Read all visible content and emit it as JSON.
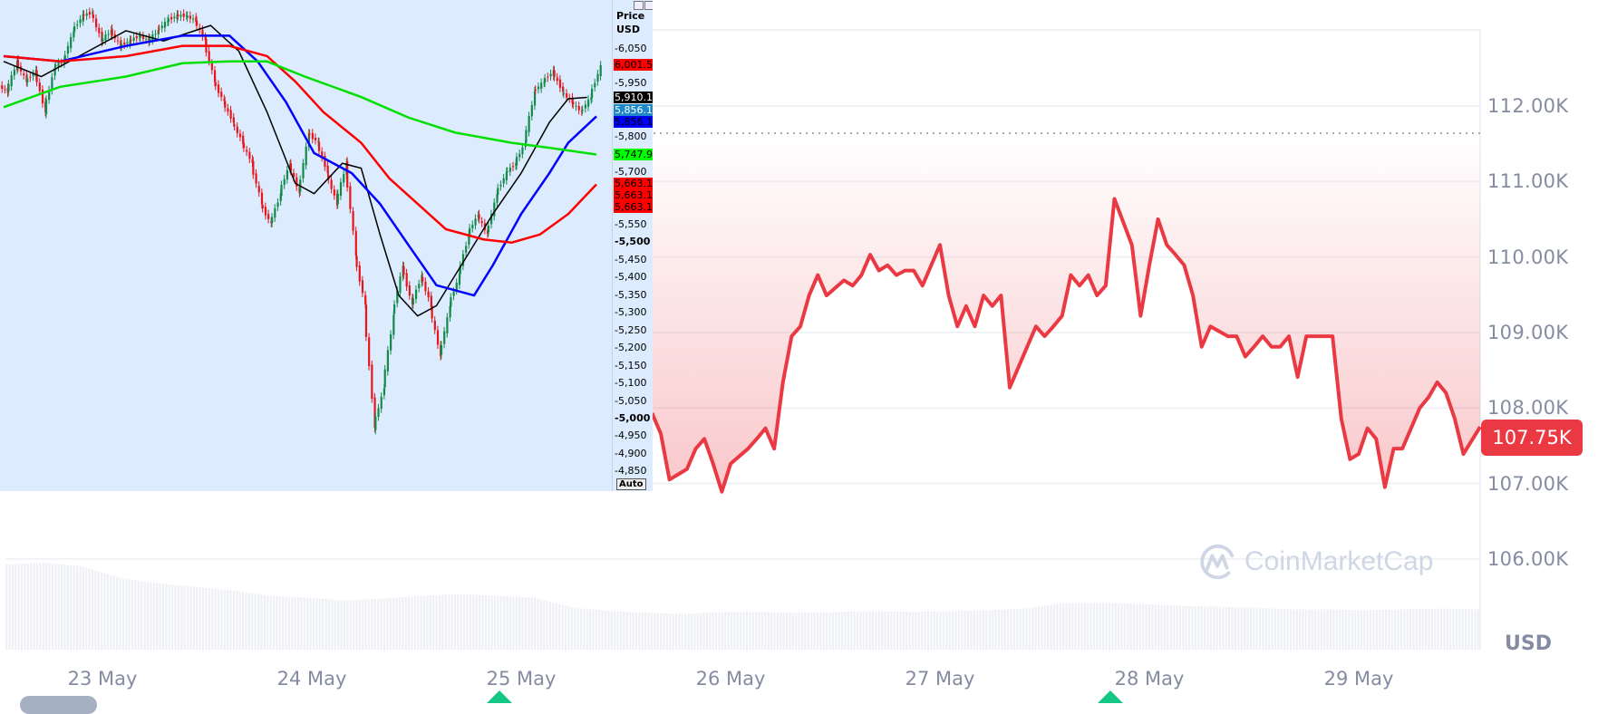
{
  "currency_label": "USD",
  "current_price_label": "107.75K",
  "watermark": "CoinMarketCap",
  "colors": {
    "line": "#ea3943",
    "badge": "#ea3943",
    "axis_text": "#858ca2",
    "marker": "#16c784",
    "overlay_bg": "#dcebfd"
  },
  "chart_data": [
    {
      "type": "area",
      "y_ticks": [
        "112.00K",
        "111.00K",
        "110.00K",
        "109.00K",
        "108.00K",
        "107.00K",
        "106.00K"
      ],
      "y_tick_values": [
        112000,
        111000,
        110000,
        109000,
        108000,
        107000,
        106000
      ],
      "x_ticks": [
        "23 May",
        "24 May",
        "25 May",
        "26 May",
        "27 May",
        "28 May",
        "29 May"
      ],
      "baseline": 111640,
      "grid": true,
      "points": [
        [
          "25 May 15:00",
          107930
        ],
        [
          "25 May 16:00",
          107660
        ],
        [
          "25 May 17:00",
          107050
        ],
        [
          "25 May 18:00",
          107120
        ],
        [
          "25 May 19:00",
          107190
        ],
        [
          "25 May 20:00",
          107460
        ],
        [
          "25 May 21:00",
          107590
        ],
        [
          "25 May 22:00",
          107260
        ],
        [
          "25 May 23:00",
          106890
        ],
        [
          "26 May 00:00",
          107260
        ],
        [
          "26 May 02:00",
          107460
        ],
        [
          "26 May 03:00",
          107590
        ],
        [
          "26 May 04:00",
          107730
        ],
        [
          "26 May 05:00",
          107460
        ],
        [
          "26 May 06:00",
          108340
        ],
        [
          "26 May 07:00",
          108950
        ],
        [
          "26 May 08:00",
          109080
        ],
        [
          "26 May 09:00",
          109490
        ],
        [
          "26 May 10:00",
          109760
        ],
        [
          "26 May 11:00",
          109490
        ],
        [
          "26 May 13:00",
          109690
        ],
        [
          "26 May 14:00",
          109620
        ],
        [
          "26 May 15:00",
          109760
        ],
        [
          "26 May 16:00",
          110030
        ],
        [
          "26 May 17:00",
          109820
        ],
        [
          "26 May 18:00",
          109890
        ],
        [
          "26 May 19:00",
          109760
        ],
        [
          "26 May 20:00",
          109820
        ],
        [
          "26 May 21:00",
          109820
        ],
        [
          "26 May 22:00",
          109620
        ],
        [
          "27 May 00:00",
          110160
        ],
        [
          "27 May 01:00",
          109490
        ],
        [
          "27 May 02:00",
          109080
        ],
        [
          "27 May 03:00",
          109350
        ],
        [
          "27 May 04:00",
          109080
        ],
        [
          "27 May 05:00",
          109490
        ],
        [
          "27 May 06:00",
          109350
        ],
        [
          "27 May 07:00",
          109490
        ],
        [
          "27 May 08:00",
          108270
        ],
        [
          "27 May 09:00",
          108540
        ],
        [
          "27 May 11:00",
          109080
        ],
        [
          "27 May 12:00",
          108950
        ],
        [
          "27 May 13:00",
          109080
        ],
        [
          "27 May 14:00",
          109220
        ],
        [
          "27 May 15:00",
          109760
        ],
        [
          "27 May 16:00",
          109620
        ],
        [
          "27 May 17:00",
          109760
        ],
        [
          "27 May 18:00",
          109490
        ],
        [
          "27 May 19:00",
          109620
        ],
        [
          "27 May 20:00",
          110770
        ],
        [
          "27 May 22:00",
          110160
        ],
        [
          "27 May 23:00",
          109220
        ],
        [
          "28 May 00:00",
          109890
        ],
        [
          "28 May 01:00",
          110500
        ],
        [
          "28 May 02:00",
          110160
        ],
        [
          "28 May 03:00",
          110030
        ],
        [
          "28 May 04:00",
          109890
        ],
        [
          "28 May 05:00",
          109490
        ],
        [
          "28 May 06:00",
          108810
        ],
        [
          "28 May 07:00",
          109080
        ],
        [
          "28 May 09:00",
          108950
        ],
        [
          "28 May 10:00",
          108950
        ],
        [
          "28 May 11:00",
          108680
        ],
        [
          "28 May 12:00",
          108810
        ],
        [
          "28 May 13:00",
          108950
        ],
        [
          "28 May 14:00",
          108810
        ],
        [
          "28 May 15:00",
          108810
        ],
        [
          "28 May 16:00",
          108950
        ],
        [
          "28 May 17:00",
          108410
        ],
        [
          "28 May 18:00",
          108950
        ],
        [
          "28 May 20:00",
          108950
        ],
        [
          "28 May 21:00",
          108950
        ],
        [
          "28 May 22:00",
          107860
        ],
        [
          "28 May 23:00",
          107320
        ],
        [
          "29 May 00:00",
          107390
        ],
        [
          "29 May 01:00",
          107730
        ],
        [
          "29 May 02:00",
          107590
        ],
        [
          "29 May 03:00",
          106950
        ],
        [
          "29 May 04:00",
          107460
        ],
        [
          "29 May 05:00",
          107460
        ],
        [
          "29 May 07:00",
          108000
        ],
        [
          "29 May 08:00",
          108140
        ],
        [
          "29 May 09:00",
          108340
        ],
        [
          "29 May 10:00",
          108200
        ],
        [
          "29 May 11:00",
          107860
        ],
        [
          "29 May 12:00",
          107390
        ],
        [
          "29 May 13:00",
          107750
        ]
      ],
      "volume_relative": [
        0.95,
        0.97,
        0.93,
        0.8,
        0.74,
        0.7,
        0.66,
        0.6,
        0.58,
        0.55,
        0.57,
        0.6,
        0.62,
        0.6,
        0.58,
        0.47,
        0.43,
        0.41,
        0.4,
        0.42,
        0.42,
        0.41,
        0.42,
        0.43,
        0.42,
        0.43,
        0.44,
        0.46,
        0.52,
        0.52,
        0.51,
        0.49,
        0.48,
        0.47,
        0.45,
        0.45,
        0.44,
        0.45,
        0.46,
        0.45
      ]
    },
    {
      "type": "candlestick",
      "title": "Price USD",
      "axis_unit": "Price\nUSD",
      "auto_label": "Auto",
      "y_ticks": [
        {
          "label": "6,050",
          "value": 6050
        },
        {
          "label": "5,950",
          "value": 5950
        },
        {
          "label": "5,800",
          "value": 5800
        },
        {
          "label": "5,700",
          "value": 5700
        },
        {
          "label": "5,550",
          "value": 5550
        },
        {
          "label": "5,500",
          "value": 5500,
          "bold": true
        },
        {
          "label": "5,450",
          "value": 5450
        },
        {
          "label": "5,400",
          "value": 5400
        },
        {
          "label": "5,350",
          "value": 5350
        },
        {
          "label": "5,300",
          "value": 5300
        },
        {
          "label": "5,250",
          "value": 5250
        },
        {
          "label": "5,200",
          "value": 5200
        },
        {
          "label": "5,150",
          "value": 5150
        },
        {
          "label": "5,100",
          "value": 5100
        },
        {
          "label": "5,050",
          "value": 5050
        },
        {
          "label": "5,000",
          "value": 5000,
          "bold": true
        },
        {
          "label": "4,950",
          "value": 4950
        },
        {
          "label": "4,900",
          "value": 4900
        },
        {
          "label": "4,850",
          "value": 4850
        }
      ],
      "price_labels": [
        {
          "label": "6,001.50",
          "value": 6001.5,
          "bg": "#ff0000",
          "fg": "#000000"
        },
        {
          "label": "5,910.12",
          "value": 5910.12,
          "bg": "#000000",
          "fg": "#ffffff"
        },
        {
          "label": "5,856.17",
          "value": 5856.17,
          "bg": "#1e88c8",
          "fg": "#ffffff",
          "offset": -5
        },
        {
          "label": "5,856.17",
          "value": 5856.17,
          "bg": "#0000ff",
          "fg": "#000000",
          "offset": 6
        },
        {
          "label": "5,747.93",
          "value": 5747.93,
          "bg": "#00ff00",
          "fg": "#000000"
        },
        {
          "label": "5,663.18",
          "value": 5663.18,
          "bg": "#ff0000",
          "fg": "#000000",
          "offset": -12
        },
        {
          "label": "5,663.18",
          "value": 5663.18,
          "bg": "#ff0000",
          "fg": "#000000",
          "offset": 0
        },
        {
          "label": "5,663.18",
          "value": 5663.18,
          "bg": "#ff0000",
          "fg": "#000000",
          "offset": 12
        }
      ],
      "closes": [
        5926,
        6012,
        5955,
        5984,
        5868,
        5998,
        6012,
        6099,
        6142,
        6151,
        6070,
        6099,
        6056,
        6070,
        6085,
        6070,
        6099,
        6128,
        6142,
        6142,
        6128,
        6070,
        5955,
        5897,
        5839,
        5781,
        5723,
        5608,
        5550,
        5637,
        5723,
        5637,
        5810,
        5781,
        5695,
        5608,
        5723,
        5463,
        5319,
        4972,
        5088,
        5290,
        5434,
        5319,
        5406,
        5319,
        5174,
        5319,
        5406,
        5521,
        5579,
        5521,
        5637,
        5695,
        5723,
        5781,
        5926,
        5955,
        5984,
        5926,
        5897,
        5868,
        5911,
        5998
      ],
      "moving_averages": [
        {
          "color": "#000000",
          "points": [
            [
              0,
              6012
            ],
            [
              4,
              5969
            ],
            [
              9,
              6041
            ],
            [
              13,
              6099
            ],
            [
              17,
              6070
            ],
            [
              22,
              6114
            ],
            [
              25,
              6041
            ],
            [
              28,
              5868
            ],
            [
              31,
              5666
            ],
            [
              33,
              5637
            ],
            [
              36,
              5723
            ],
            [
              38,
              5709
            ],
            [
              40,
              5521
            ],
            [
              42,
              5348
            ],
            [
              44,
              5290
            ],
            [
              46,
              5319
            ],
            [
              48,
              5406
            ],
            [
              52,
              5579
            ],
            [
              55,
              5695
            ],
            [
              58,
              5839
            ],
            [
              60,
              5906
            ],
            [
              62,
              5910
            ]
          ]
        },
        {
          "color": "#0000ff",
          "points": [
            [
              0,
              6027
            ],
            [
              6,
              6012
            ],
            [
              13,
              6056
            ],
            [
              19,
              6085
            ],
            [
              24,
              6085
            ],
            [
              27,
              6012
            ],
            [
              30,
              5897
            ],
            [
              33,
              5752
            ],
            [
              37,
              5695
            ],
            [
              40,
              5608
            ],
            [
              43,
              5492
            ],
            [
              46,
              5377
            ],
            [
              50,
              5348
            ],
            [
              52,
              5434
            ],
            [
              55,
              5579
            ],
            [
              58,
              5695
            ],
            [
              60,
              5781
            ],
            [
              63,
              5856
            ]
          ]
        },
        {
          "color": "#ff0000",
          "points": [
            [
              0,
              6027
            ],
            [
              6,
              6012
            ],
            [
              13,
              6027
            ],
            [
              19,
              6056
            ],
            [
              24,
              6056
            ],
            [
              28,
              6027
            ],
            [
              31,
              5955
            ],
            [
              34,
              5868
            ],
            [
              38,
              5781
            ],
            [
              41,
              5680
            ],
            [
              44,
              5608
            ],
            [
              47,
              5536
            ],
            [
              51,
              5507
            ],
            [
              54,
              5498
            ],
            [
              57,
              5521
            ],
            [
              60,
              5579
            ],
            [
              63,
              5663
            ]
          ]
        },
        {
          "color": "#00e000",
          "points": [
            [
              0,
              5882
            ],
            [
              6,
              5940
            ],
            [
              13,
              5969
            ],
            [
              19,
              6007
            ],
            [
              24,
              6012
            ],
            [
              28,
              6012
            ],
            [
              32,
              5969
            ],
            [
              38,
              5911
            ],
            [
              43,
              5853
            ],
            [
              48,
              5810
            ],
            [
              54,
              5781
            ],
            [
              58,
              5767
            ],
            [
              63,
              5748
            ]
          ]
        }
      ]
    }
  ]
}
